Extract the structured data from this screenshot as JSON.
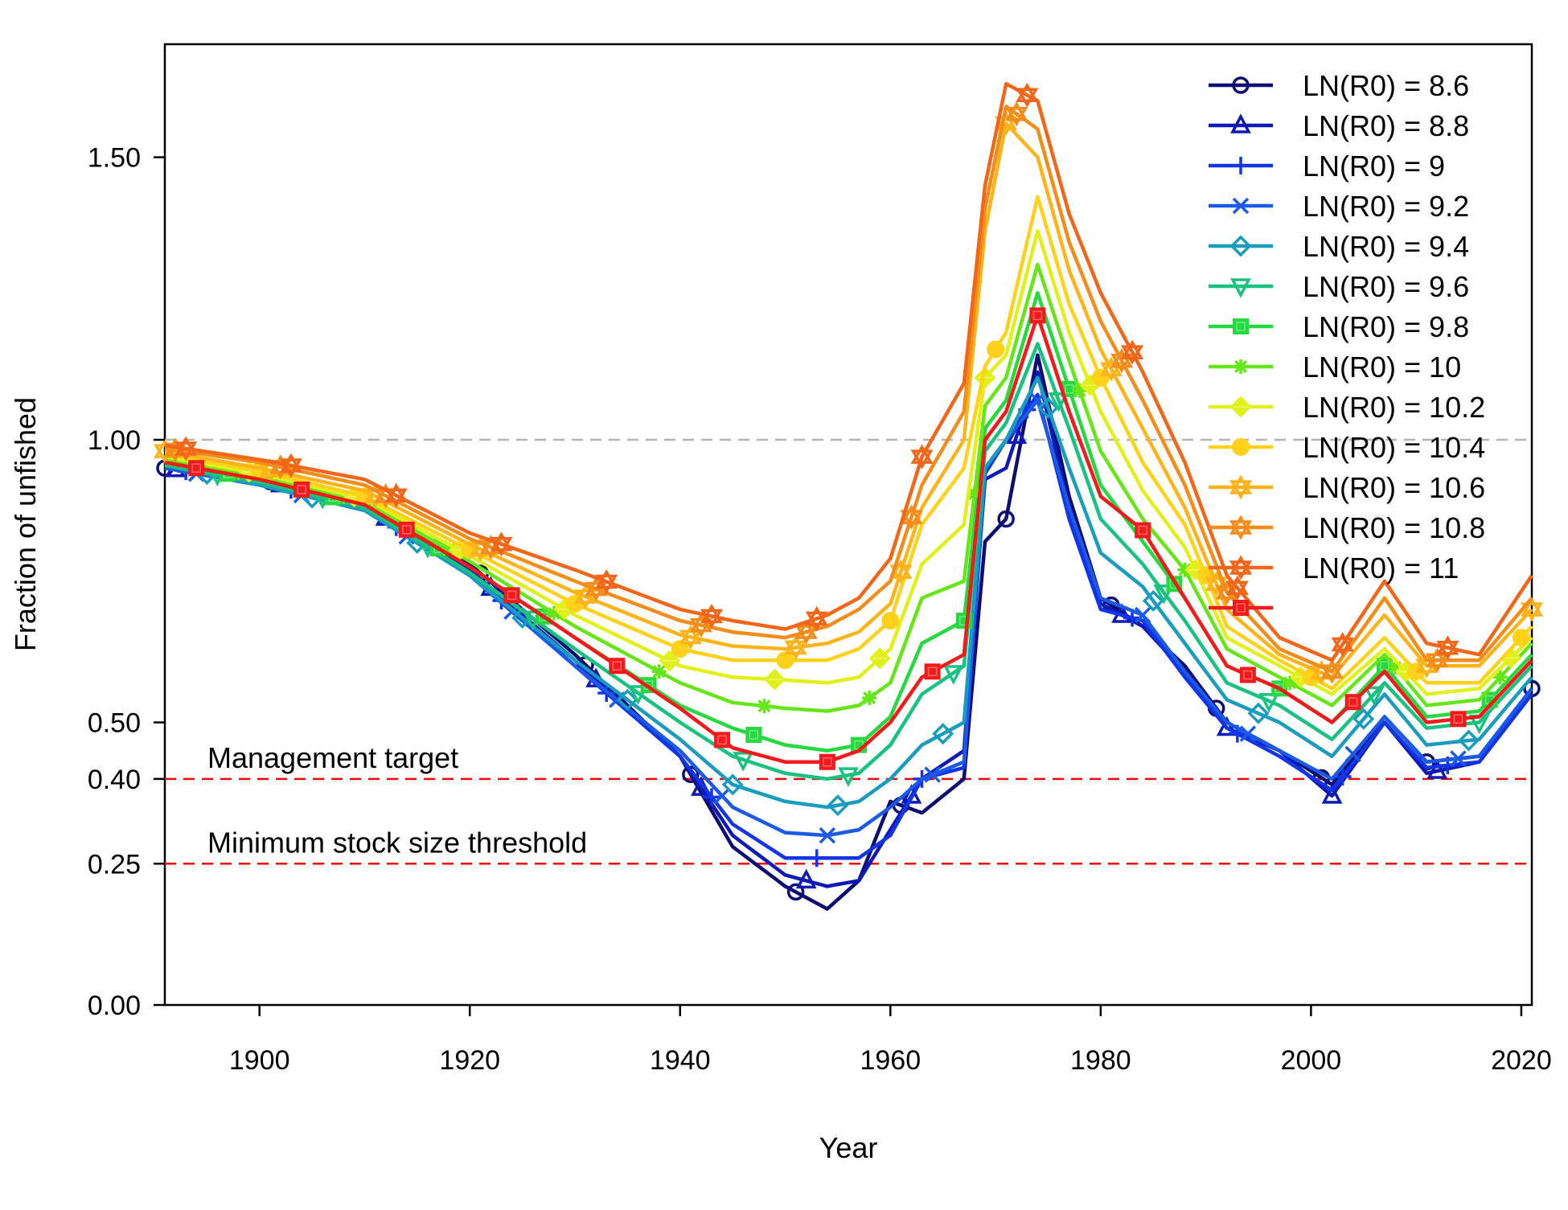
{
  "chart_data": {
    "type": "line",
    "xlabel": "Year",
    "ylabel": "Fraction of unfished",
    "xlim": [
      1891,
      2021
    ],
    "ylim": [
      0,
      1.7
    ],
    "x_ticks": [
      1900,
      1920,
      1940,
      1960,
      1980,
      2000,
      2020
    ],
    "x_tick_labels": [
      "1900",
      "1920",
      "1940",
      "1960",
      "1980",
      "2000",
      "2020"
    ],
    "y_ticks": [
      0,
      0.25,
      0.4,
      0.5,
      1.0,
      1.5
    ],
    "y_tick_labels": [
      "0.00",
      "0.25",
      "0.40",
      "0.50",
      "1.00",
      "1.50"
    ],
    "reference_lines": [
      {
        "y": 1.0,
        "color": "#b3b3b3",
        "style": "dashed",
        "label": ""
      },
      {
        "y": 0.4,
        "color": "#ff0000",
        "style": "dashed",
        "label": "Management target"
      },
      {
        "y": 0.25,
        "color": "#ff0000",
        "style": "dashed",
        "label": "Minimum stock size threshold"
      }
    ],
    "legend_position": "top-right",
    "key_years": [
      1891,
      1900,
      1910,
      1920,
      1930,
      1940,
      1945,
      1950,
      1954,
      1957,
      1960,
      1963,
      1967,
      1969,
      1971,
      1974,
      1977,
      1980,
      1984,
      1988,
      1992,
      1997,
      2002,
      2007,
      2011,
      2016,
      2021
    ],
    "series": [
      {
        "name": "LN(R0) = 8.6",
        "color": "#0d0d73",
        "marker": "circle",
        "marker_years": [
          1891,
          1901,
          1911,
          1921,
          1931,
          1941,
          1951,
          1961,
          1971,
          1981,
          1991,
          2001,
          2011,
          2021
        ],
        "values": [
          0.95,
          0.93,
          0.89,
          0.78,
          0.62,
          0.44,
          0.28,
          0.21,
          0.17,
          0.22,
          0.36,
          0.34,
          0.4,
          0.82,
          0.86,
          1.15,
          0.9,
          0.72,
          0.67,
          0.6,
          0.5,
          0.45,
          0.39,
          0.51,
          0.43,
          0.44,
          0.56
        ]
      },
      {
        "name": "LN(R0) = 8.8",
        "color": "#0d1ab8",
        "marker": "triangle",
        "marker_years": [
          1892,
          1902,
          1912,
          1922,
          1932,
          1942,
          1952,
          1962,
          1972,
          1982,
          1992,
          2002,
          2012
        ],
        "values": [
          0.95,
          0.93,
          0.885,
          0.77,
          0.61,
          0.44,
          0.3,
          0.23,
          0.21,
          0.22,
          0.31,
          0.4,
          0.45,
          0.93,
          0.95,
          1.12,
          0.88,
          0.71,
          0.67,
          0.59,
          0.49,
          0.45,
          0.37,
          0.5,
          0.41,
          0.43,
          0.55
        ]
      },
      {
        "name": "LN(R0) = 9",
        "color": "#1236e6",
        "marker": "plus",
        "marker_years": [
          1893,
          1903,
          1913,
          1923,
          1933,
          1943,
          1953,
          1963,
          1973,
          1983,
          1993,
          2003,
          2013
        ],
        "values": [
          0.95,
          0.925,
          0.88,
          0.765,
          0.6,
          0.44,
          0.32,
          0.26,
          0.26,
          0.26,
          0.3,
          0.4,
          0.42,
          0.94,
          1.0,
          1.08,
          0.86,
          0.7,
          0.68,
          0.58,
          0.49,
          0.44,
          0.38,
          0.5,
          0.42,
          0.43,
          0.55
        ]
      },
      {
        "name": "LN(R0) = 9.2",
        "color": "#1a5ae6",
        "marker": "x",
        "marker_years": [
          1894,
          1904,
          1914,
          1924,
          1934,
          1944,
          1954,
          1964,
          1974,
          1984,
          1994,
          2004,
          2014
        ],
        "values": [
          0.95,
          0.92,
          0.875,
          0.76,
          0.6,
          0.45,
          0.35,
          0.305,
          0.3,
          0.31,
          0.35,
          0.4,
          0.43,
          0.95,
          1.0,
          1.07,
          0.88,
          0.72,
          0.69,
          0.59,
          0.5,
          0.45,
          0.4,
          0.51,
          0.43,
          0.44,
          0.56
        ]
      },
      {
        "name": "LN(R0) = 9.4",
        "color": "#1a9cbf",
        "marker": "diamond",
        "marker_years": [
          1895,
          1905,
          1915,
          1925,
          1935,
          1945,
          1955,
          1965,
          1975,
          1985,
          1995,
          2005,
          2015
        ],
        "values": [
          0.955,
          0.92,
          0.875,
          0.76,
          0.61,
          0.47,
          0.39,
          0.36,
          0.35,
          0.36,
          0.4,
          0.46,
          0.5,
          0.95,
          1.0,
          1.11,
          0.95,
          0.8,
          0.74,
          0.64,
          0.54,
          0.5,
          0.44,
          0.55,
          0.46,
          0.47,
          0.58
        ]
      },
      {
        "name": "LN(R0) = 9.6",
        "color": "#1ac280",
        "marker": "triangle-down",
        "marker_years": [
          1896,
          1906,
          1916,
          1926,
          1936,
          1946,
          1956,
          1966,
          1976,
          1986,
          1996,
          2006,
          2016
        ],
        "values": [
          0.955,
          0.925,
          0.88,
          0.765,
          0.63,
          0.5,
          0.44,
          0.41,
          0.4,
          0.41,
          0.46,
          0.55,
          0.6,
          0.98,
          1.03,
          1.17,
          1.02,
          0.86,
          0.78,
          0.68,
          0.57,
          0.53,
          0.47,
          0.57,
          0.49,
          0.5,
          0.6
        ]
      },
      {
        "name": "LN(R0) = 9.8",
        "color": "#26d940",
        "marker": "square",
        "marker_years": [
          1897,
          1907,
          1917,
          1927,
          1937,
          1947,
          1957,
          1967,
          1977,
          1987,
          1997,
          2007,
          2017
        ],
        "values": [
          0.96,
          0.93,
          0.885,
          0.775,
          0.65,
          0.53,
          0.49,
          0.46,
          0.45,
          0.46,
          0.51,
          0.64,
          0.68,
          1.02,
          1.07,
          1.26,
          1.09,
          0.92,
          0.82,
          0.72,
          0.6,
          0.56,
          0.5,
          0.6,
          0.51,
          0.52,
          0.62
        ]
      },
      {
        "name": "LN(R0) = 10",
        "color": "#66e619",
        "marker": "asterisk",
        "marker_years": [
          1898,
          1908,
          1918,
          1928,
          1938,
          1948,
          1958,
          1968,
          1978,
          1988,
          1998,
          2008,
          2018
        ],
        "values": [
          0.965,
          0.935,
          0.89,
          0.785,
          0.67,
          0.57,
          0.535,
          0.525,
          0.52,
          0.53,
          0.57,
          0.72,
          0.75,
          1.06,
          1.11,
          1.31,
          1.14,
          0.98,
          0.86,
          0.77,
          0.63,
          0.58,
          0.53,
          0.62,
          0.53,
          0.54,
          0.64
        ]
      },
      {
        "name": "LN(R0) = 10.2",
        "color": "#e1ef1a",
        "marker": "diamond-filled",
        "marker_years": [
          1899,
          1909,
          1919,
          1929,
          1939,
          1949,
          1959,
          1969,
          1979,
          1989,
          1999,
          2009,
          2019
        ],
        "values": [
          0.97,
          0.94,
          0.895,
          0.795,
          0.69,
          0.6,
          0.58,
          0.575,
          0.57,
          0.58,
          0.63,
          0.78,
          0.85,
          1.11,
          1.15,
          1.37,
          1.19,
          1.05,
          0.91,
          0.81,
          0.65,
          0.6,
          0.55,
          0.63,
          0.55,
          0.56,
          0.65
        ]
      },
      {
        "name": "LN(R0) = 10.4",
        "color": "#ffd11a",
        "marker": "circle-filled",
        "marker_years": [
          1900,
          1910,
          1920,
          1930,
          1940,
          1950,
          1960,
          1970,
          1980,
          1990,
          2000,
          2010,
          2020
        ],
        "values": [
          0.975,
          0.945,
          0.9,
          0.805,
          0.71,
          0.63,
          0.61,
          0.61,
          0.61,
          0.63,
          0.68,
          0.85,
          0.95,
          1.13,
          1.19,
          1.43,
          1.24,
          1.11,
          0.96,
          0.85,
          0.67,
          0.61,
          0.56,
          0.65,
          0.57,
          0.57,
          0.67
        ]
      },
      {
        "name": "LN(R0) = 10.6",
        "color": "#ffb31a",
        "marker": "star",
        "marker_years": [
          1891,
          1901,
          1911,
          1921,
          1931,
          1941,
          1951,
          1961,
          1971,
          1981,
          1991,
          2001,
          2011,
          2021
        ],
        "values": [
          0.98,
          0.95,
          0.91,
          0.815,
          0.73,
          0.655,
          0.635,
          0.63,
          0.64,
          0.66,
          0.71,
          0.88,
          1.0,
          1.37,
          1.56,
          1.5,
          1.3,
          1.16,
          1.02,
          0.88,
          0.7,
          0.62,
          0.58,
          0.69,
          0.6,
          0.6,
          0.7
        ]
      },
      {
        "name": "LN(R0) = 10.8",
        "color": "#f28c1a",
        "marker": "star",
        "marker_years": [
          1892,
          1902,
          1912,
          1922,
          1932,
          1942,
          1952,
          1962,
          1972,
          1982,
          1992,
          2002,
          2012
        ],
        "values": [
          0.985,
          0.96,
          0.92,
          0.825,
          0.75,
          0.68,
          0.66,
          0.65,
          0.67,
          0.7,
          0.75,
          0.92,
          1.05,
          1.41,
          1.59,
          1.55,
          1.35,
          1.21,
          1.07,
          0.92,
          0.73,
          0.63,
          0.59,
          0.72,
          0.61,
          0.61,
          0.72
        ]
      },
      {
        "name": "LN(R0) = 11",
        "color": "#f2661a",
        "marker": "star",
        "marker_years": [
          1893,
          1903,
          1913,
          1923,
          1933,
          1943,
          1953,
          1963,
          1973,
          1983,
          1993,
          2003,
          2013
        ],
        "values": [
          0.99,
          0.965,
          0.93,
          0.835,
          0.77,
          0.7,
          0.68,
          0.665,
          0.69,
          0.72,
          0.79,
          0.97,
          1.1,
          1.45,
          1.63,
          1.6,
          1.4,
          1.26,
          1.12,
          0.96,
          0.76,
          0.65,
          0.61,
          0.75,
          0.64,
          0.62,
          0.76
        ]
      },
      {
        "name": "",
        "color": "#f21a1a",
        "marker": "square",
        "marker_years": [
          1894,
          1904,
          1914,
          1924,
          1934,
          1944,
          1954,
          1964,
          1974,
          1984,
          1994,
          2004,
          2014
        ],
        "values": [
          0.96,
          0.93,
          0.885,
          0.775,
          0.65,
          0.525,
          0.455,
          0.43,
          0.43,
          0.45,
          0.5,
          0.58,
          0.62,
          1.0,
          1.05,
          1.22,
          1.05,
          0.9,
          0.84,
          0.72,
          0.6,
          0.56,
          0.5,
          0.59,
          0.5,
          0.51,
          0.61
        ]
      }
    ]
  }
}
